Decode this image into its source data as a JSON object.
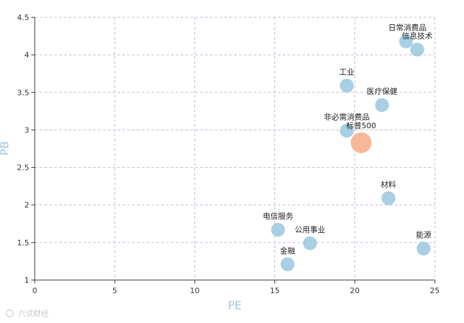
{
  "chart_data": {
    "type": "scatter",
    "title": "",
    "xlabel": "PE",
    "ylabel": "PB",
    "xlim": [
      0,
      25
    ],
    "ylim": [
      1,
      4.5
    ],
    "xticks": [
      0,
      5,
      10,
      15,
      20,
      25
    ],
    "yticks": [
      1,
      1.5,
      2,
      2.5,
      3,
      3.5,
      4,
      4.5
    ],
    "grid": true,
    "colors": {
      "sector": "#a8cfe4",
      "benchmark": "#f7b89a",
      "axis_title": "#9ec6df",
      "grid": "#c9b8d6"
    },
    "points": [
      {
        "name": "日常消费品",
        "x": 23.2,
        "y": 4.18,
        "kind": "sector",
        "label_pos": "top-left"
      },
      {
        "name": "信息技术",
        "x": 23.9,
        "y": 4.07,
        "kind": "sector",
        "label_pos": "top"
      },
      {
        "name": "工业",
        "x": 19.5,
        "y": 3.59,
        "kind": "sector",
        "label_pos": "top"
      },
      {
        "name": "医疗保健",
        "x": 21.7,
        "y": 3.33,
        "kind": "sector",
        "label_pos": "top"
      },
      {
        "name": "非必需消费品",
        "x": 19.5,
        "y": 2.99,
        "kind": "sector",
        "label_pos": "top"
      },
      {
        "name": "标普500",
        "x": 20.4,
        "y": 2.83,
        "kind": "benchmark",
        "label_pos": "top"
      },
      {
        "name": "材料",
        "x": 22.1,
        "y": 2.09,
        "kind": "sector",
        "label_pos": "top"
      },
      {
        "name": "电信服务",
        "x": 15.2,
        "y": 1.67,
        "kind": "sector",
        "label_pos": "top"
      },
      {
        "name": "公用事业",
        "x": 17.2,
        "y": 1.49,
        "kind": "sector",
        "label_pos": "top"
      },
      {
        "name": "能源",
        "x": 24.3,
        "y": 1.42,
        "kind": "sector",
        "label_pos": "top"
      },
      {
        "name": "金融",
        "x": 15.8,
        "y": 1.21,
        "kind": "sector",
        "label_pos": "top"
      }
    ]
  },
  "watermark": "六试财经"
}
